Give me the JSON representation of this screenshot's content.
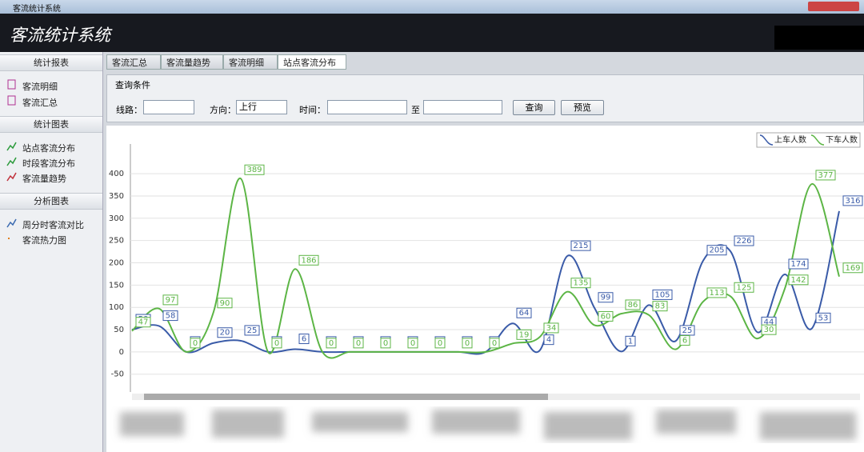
{
  "window": {
    "title": "客流统计系统"
  },
  "header": {
    "title": "客流统计系统"
  },
  "sidebar": {
    "groups": [
      {
        "title": "统计报表",
        "items": [
          "客流明细",
          "客流汇总"
        ]
      },
      {
        "title": "统计图表",
        "items": [
          "站点客流分布",
          "时段客流分布",
          "客流量趋势"
        ]
      },
      {
        "title": "分析图表",
        "items": [
          "周分时客流对比",
          "客流热力图"
        ]
      }
    ]
  },
  "tabs": [
    "客流汇总",
    "客流量趋势",
    "客流明细",
    "站点客流分布"
  ],
  "query": {
    "title": "查询条件",
    "line_label": "线路：",
    "direction_label": "方向：",
    "direction_value": "上行",
    "time_label": "时间：",
    "to_label": "至",
    "query_button": "查询",
    "preview_button": "预览"
  },
  "chart_data": {
    "type": "line",
    "series": [
      {
        "name": "上车人数",
        "color": "#3a5ba8",
        "values": [
          50,
          58,
          0,
          20,
          25,
          0,
          6,
          0,
          0,
          0,
          0,
          0,
          0,
          0,
          64,
          4,
          215,
          99,
          1,
          105,
          25,
          205,
          226,
          44,
          174,
          53,
          316
        ]
      },
      {
        "name": "下车人数",
        "color": "#5cb545",
        "values": [
          47,
          97,
          0,
          90,
          389,
          0,
          186,
          0,
          0,
          0,
          0,
          0,
          0,
          0,
          19,
          34,
          135,
          60,
          86,
          83,
          6,
          113,
          125,
          30,
          142,
          377,
          169
        ]
      }
    ],
    "ylim": [
      -90,
      490
    ],
    "yticks": [
      -50,
      0,
      50,
      100,
      150,
      200,
      250,
      300,
      350,
      400
    ],
    "grid": true
  }
}
